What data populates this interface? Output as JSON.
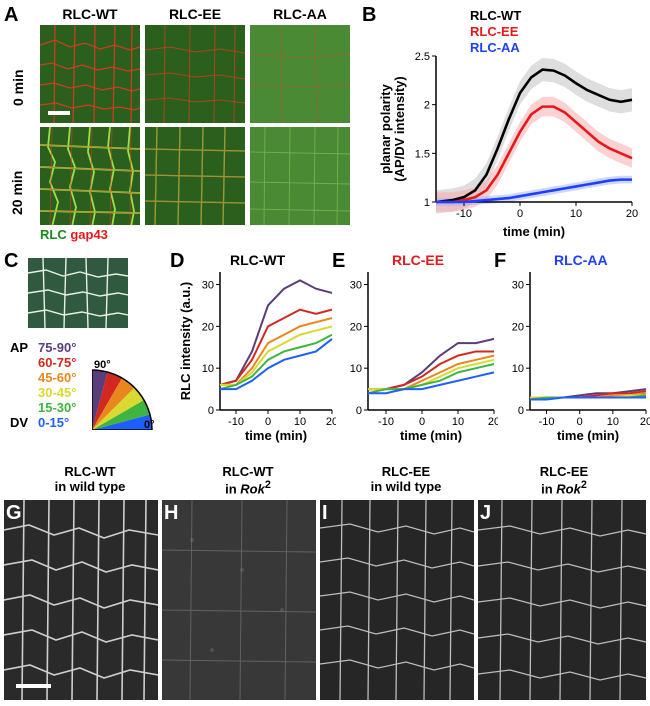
{
  "panelA": {
    "label": "A",
    "columns": [
      "RLC-WT",
      "RLC-EE",
      "RLC-AA"
    ],
    "rows": [
      "0 min",
      "20 min"
    ],
    "bottom_labels": {
      "green": "RLC",
      "red": "gap43"
    },
    "img_bg": "#3d7a2a",
    "cell_color_red": "#e63a1f",
    "cell_color_green": "#9fe84a"
  },
  "panelB": {
    "label": "B",
    "legend": [
      {
        "text": "RLC-WT",
        "color": "#000000"
      },
      {
        "text": "RLC-EE",
        "color": "#e31a1c"
      },
      {
        "text": "RLC-AA",
        "color": "#1f3fff"
      }
    ],
    "xlabel": "time (min)",
    "ylabel": "planar polarity\n(AP/DV intensity)",
    "xlim": [
      -15,
      20
    ],
    "xticks": [
      -10,
      0,
      10,
      20
    ],
    "ylim": [
      1.0,
      2.5
    ],
    "yticks": [
      1.0,
      1.5,
      2.0,
      2.5
    ],
    "series": {
      "wt": {
        "color": "#000000",
        "shade": "#bdbdbd",
        "x": [
          -15,
          -12,
          -10,
          -8,
          -6,
          -4,
          -2,
          0,
          2,
          4,
          6,
          8,
          10,
          12,
          14,
          16,
          18,
          20
        ],
        "y": [
          1.0,
          1.02,
          1.05,
          1.12,
          1.28,
          1.55,
          1.85,
          2.12,
          2.28,
          2.36,
          2.35,
          2.3,
          2.22,
          2.15,
          2.1,
          2.05,
          2.03,
          2.05
        ]
      },
      "ee": {
        "color": "#e31a1c",
        "shade": "#f7a3a3",
        "x": [
          -15,
          -12,
          -10,
          -8,
          -6,
          -4,
          -2,
          0,
          2,
          4,
          6,
          8,
          10,
          12,
          14,
          16,
          18,
          20
        ],
        "y": [
          1.0,
          1.0,
          1.02,
          1.05,
          1.12,
          1.28,
          1.5,
          1.72,
          1.9,
          1.98,
          1.98,
          1.92,
          1.82,
          1.72,
          1.62,
          1.55,
          1.5,
          1.45
        ]
      },
      "aa": {
        "color": "#1f3fff",
        "shade": "#9fb0ff",
        "x": [
          -15,
          -12,
          -10,
          -8,
          -6,
          -4,
          -2,
          0,
          2,
          4,
          6,
          8,
          10,
          12,
          14,
          16,
          18,
          20
        ],
        "y": [
          1.0,
          1.0,
          1.0,
          1.01,
          1.02,
          1.03,
          1.04,
          1.06,
          1.08,
          1.1,
          1.12,
          1.14,
          1.16,
          1.18,
          1.2,
          1.22,
          1.23,
          1.23
        ]
      }
    }
  },
  "panelC": {
    "label": "C",
    "legend_rows": [
      {
        "range": "75-90°",
        "color": "#5a3d7a"
      },
      {
        "range": "60-75°",
        "color": "#d1281f"
      },
      {
        "range": "45-60°",
        "color": "#e8871e"
      },
      {
        "range": "30-45°",
        "color": "#d9d932"
      },
      {
        "range": "15-30°",
        "color": "#3fb53f"
      },
      {
        "range": "0-15°",
        "color": "#1f5fff"
      }
    ],
    "ap": "AP",
    "dv": "DV",
    "ang90": "90°",
    "ang0": "0°",
    "schematic_bg": "#2f5a3f"
  },
  "panelsDEF": {
    "D": {
      "label": "D",
      "title": "RLC-WT",
      "title_color": "#000000"
    },
    "E": {
      "label": "E",
      "title": "RLC-EE",
      "title_color": "#e31a1c"
    },
    "F": {
      "label": "F",
      "title": "RLC-AA",
      "title_color": "#1f3fff"
    },
    "xlabel": "time (min)",
    "ylabel": "RLC intensity (a.u.)",
    "xlim": [
      -15,
      20
    ],
    "xticks": [
      -10,
      0,
      10,
      20
    ],
    "ylim": [
      0,
      33
    ],
    "yticks": [
      0,
      10,
      20,
      30
    ],
    "seriesD": [
      {
        "color": "#5a3d7a",
        "x": [
          -15,
          -10,
          -5,
          0,
          5,
          10,
          15,
          20
        ],
        "y": [
          6,
          7,
          14,
          25,
          29,
          31,
          29,
          28
        ]
      },
      {
        "color": "#d1281f",
        "x": [
          -15,
          -10,
          -5,
          0,
          5,
          10,
          15,
          20
        ],
        "y": [
          6,
          7,
          12,
          20,
          22,
          24,
          23,
          24
        ]
      },
      {
        "color": "#e8871e",
        "x": [
          -15,
          -10,
          -5,
          0,
          5,
          10,
          15,
          20
        ],
        "y": [
          6,
          6,
          10,
          16,
          18,
          20,
          21,
          22
        ]
      },
      {
        "color": "#d9d932",
        "x": [
          -15,
          -10,
          -5,
          0,
          5,
          10,
          15,
          20
        ],
        "y": [
          6,
          6,
          9,
          14,
          16,
          18,
          19,
          20
        ]
      },
      {
        "color": "#3fb53f",
        "x": [
          -15,
          -10,
          -5,
          0,
          5,
          10,
          15,
          20
        ],
        "y": [
          5,
          6,
          8,
          12,
          14,
          15,
          16,
          18
        ]
      },
      {
        "color": "#1f5fff",
        "x": [
          -15,
          -10,
          -5,
          0,
          5,
          10,
          15,
          20
        ],
        "y": [
          5,
          5,
          7,
          10,
          12,
          13,
          14,
          17
        ]
      }
    ],
    "seriesE": [
      {
        "color": "#5a3d7a",
        "x": [
          -15,
          -10,
          -5,
          0,
          5,
          10,
          15,
          20
        ],
        "y": [
          5,
          5,
          6,
          9,
          13,
          16,
          16,
          17
        ]
      },
      {
        "color": "#d1281f",
        "x": [
          -15,
          -10,
          -5,
          0,
          5,
          10,
          15,
          20
        ],
        "y": [
          5,
          5,
          6,
          8,
          11,
          13,
          14,
          14
        ]
      },
      {
        "color": "#e8871e",
        "x": [
          -15,
          -10,
          -5,
          0,
          5,
          10,
          15,
          20
        ],
        "y": [
          5,
          5,
          5,
          7,
          9,
          11,
          12,
          13
        ]
      },
      {
        "color": "#d9d932",
        "x": [
          -15,
          -10,
          -5,
          0,
          5,
          10,
          15,
          20
        ],
        "y": [
          5,
          5,
          5,
          6,
          8,
          10,
          11,
          12
        ]
      },
      {
        "color": "#3fb53f",
        "x": [
          -15,
          -10,
          -5,
          0,
          5,
          10,
          15,
          20
        ],
        "y": [
          4,
          5,
          5,
          6,
          7,
          9,
          10,
          11
        ]
      },
      {
        "color": "#1f5fff",
        "x": [
          -15,
          -10,
          -5,
          0,
          5,
          10,
          15,
          20
        ],
        "y": [
          4,
          4,
          5,
          5,
          6,
          7,
          8,
          9
        ]
      }
    ],
    "seriesF": [
      {
        "color": "#5a3d7a",
        "x": [
          -15,
          -10,
          -5,
          0,
          5,
          10,
          15,
          20
        ],
        "y": [
          3,
          3,
          3,
          3.5,
          4,
          4,
          4.5,
          5
        ]
      },
      {
        "color": "#d1281f",
        "x": [
          -15,
          -10,
          -5,
          0,
          5,
          10,
          15,
          20
        ],
        "y": [
          3,
          3,
          3,
          3,
          3.5,
          4,
          4,
          4.5
        ]
      },
      {
        "color": "#e8871e",
        "x": [
          -15,
          -10,
          -5,
          0,
          5,
          10,
          15,
          20
        ],
        "y": [
          3,
          3,
          3,
          3,
          3,
          3.5,
          3.5,
          4
        ]
      },
      {
        "color": "#d9d932",
        "x": [
          -15,
          -10,
          -5,
          0,
          5,
          10,
          15,
          20
        ],
        "y": [
          3,
          3,
          3,
          3,
          3,
          3,
          3.5,
          3.5
        ]
      },
      {
        "color": "#3fb53f",
        "x": [
          -15,
          -10,
          -5,
          0,
          5,
          10,
          15,
          20
        ],
        "y": [
          2.5,
          3,
          3,
          3,
          3,
          3,
          3,
          3.5
        ]
      },
      {
        "color": "#1f5fff",
        "x": [
          -15,
          -10,
          -5,
          0,
          5,
          10,
          15,
          20
        ],
        "y": [
          2.5,
          2.5,
          3,
          3,
          3,
          3,
          3,
          3
        ]
      }
    ]
  },
  "panelGHIJ": {
    "labels": [
      "G",
      "H",
      "I",
      "J"
    ],
    "titles": [
      [
        "RLC-WT",
        "in wild type"
      ],
      [
        "RLC-WT",
        "in Rok²",
        "italic-last"
      ],
      [
        "RLC-EE",
        "in wild type"
      ],
      [
        "RLC-EE",
        "in Rok²",
        "italic-last"
      ]
    ]
  }
}
